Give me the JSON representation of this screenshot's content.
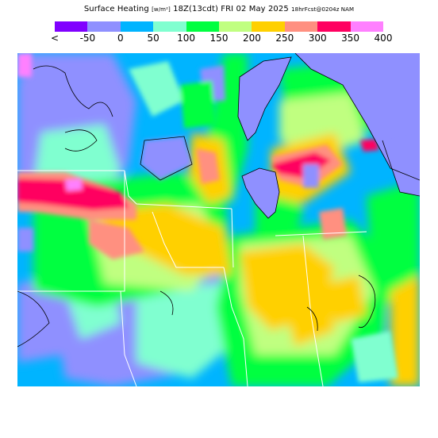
{
  "header": {
    "title": "Surface Heating",
    "units": "[w/m²]",
    "valid_hour": "18Z(13cdt)",
    "valid_date": "FRI 02 May 2025",
    "model_run": "18hrFcst@0204z NAM"
  },
  "legend": {
    "labels": [
      "<",
      "-50",
      "0",
      "50",
      "100",
      "150",
      "200",
      "250",
      "300",
      "350",
      "400"
    ],
    "colors": [
      "#8000ff",
      "#8f90ff",
      "#00b4ff",
      "#80ffd0",
      "#00ff40",
      "#c0ff80",
      "#ffd000",
      "#ff9080",
      "#ff0060",
      "#ff80ff"
    ]
  },
  "colors": {
    "lake": "#8f90ff",
    "border": "#ffffff",
    "coast": "#000000"
  }
}
